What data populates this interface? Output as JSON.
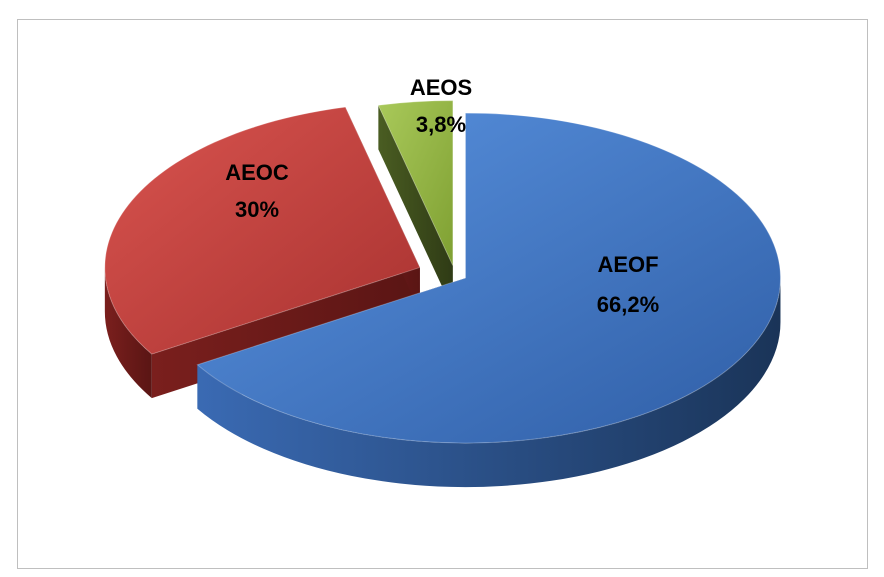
{
  "chart_data": {
    "type": "pie",
    "style": "3d-exploded",
    "title": "",
    "legend": "none",
    "slices": [
      {
        "name": "AEOF",
        "value": 66.2,
        "display": "66,2%",
        "color": "#3d72c2"
      },
      {
        "name": "AEOC",
        "value": 30,
        "display": "30%",
        "color": "#c13a36"
      },
      {
        "name": "AEOS",
        "value": 3.8,
        "display": "3,8%",
        "color": "#8fb13c"
      }
    ]
  }
}
